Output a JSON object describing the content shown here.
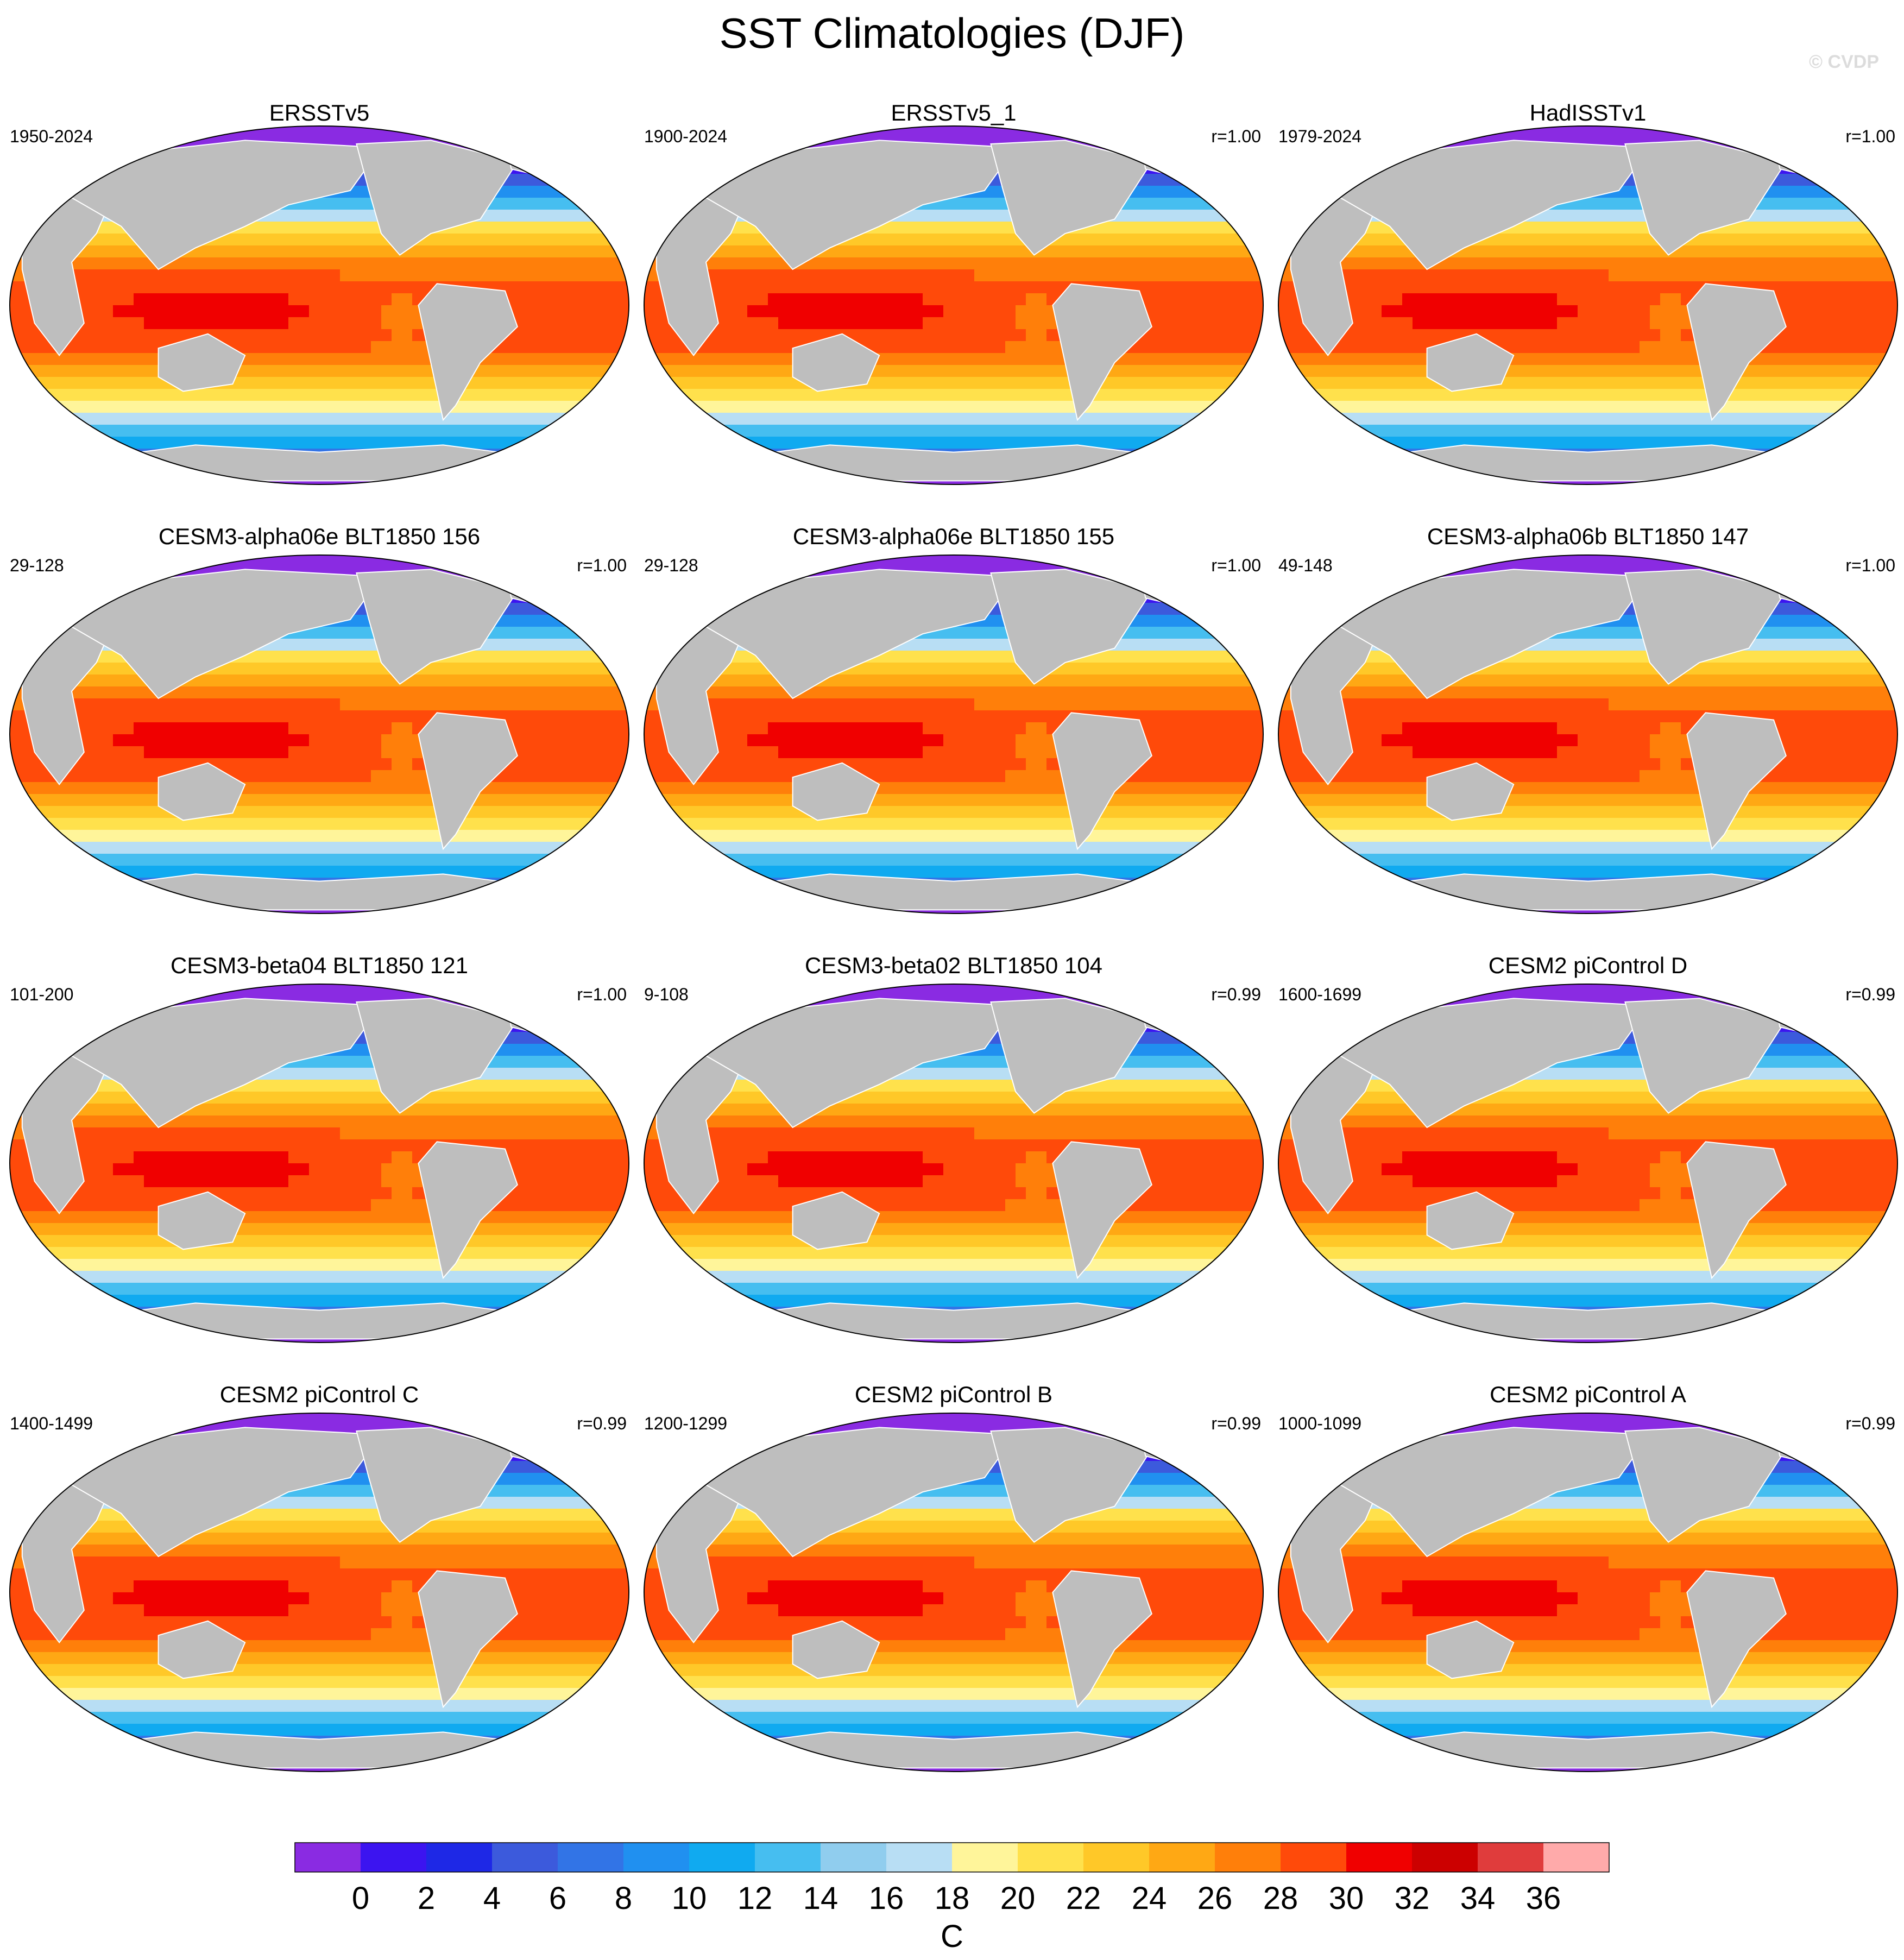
{
  "title": "SST Climatologies (DJF)",
  "watermark": "© CVDP",
  "chart_data": {
    "type": "heatmap",
    "projection": "robinson",
    "land_color": "#BEBEBE",
    "panels": [
      {
        "name": "ERSSTv5",
        "period": "1950-2024",
        "r": ""
      },
      {
        "name": "ERSSTv5_1",
        "period": "1900-2024",
        "r": "r=1.00"
      },
      {
        "name": "HadISSTv1",
        "period": "1979-2024",
        "r": "r=1.00"
      },
      {
        "name": "CESM3-alpha06e BLT1850 156",
        "period": "29-128",
        "r": "r=1.00"
      },
      {
        "name": "CESM3-alpha06e BLT1850 155",
        "period": "29-128",
        "r": "r=1.00"
      },
      {
        "name": "CESM3-alpha06b BLT1850 147",
        "period": "49-148",
        "r": "r=1.00"
      },
      {
        "name": "CESM3-beta04 BLT1850 121",
        "period": "101-200",
        "r": "r=1.00"
      },
      {
        "name": "CESM3-beta02 BLT1850 104",
        "period": "9-108",
        "r": "r=0.99"
      },
      {
        "name": "CESM2 piControl D",
        "period": "1600-1699",
        "r": "r=0.99"
      },
      {
        "name": "CESM2 piControl C",
        "period": "1400-1499",
        "r": "r=0.99"
      },
      {
        "name": "CESM2 piControl B",
        "period": "1200-1299",
        "r": "r=0.99"
      },
      {
        "name": "CESM2 piControl A",
        "period": "1000-1099",
        "r": "r=0.99"
      }
    ],
    "colorbar": {
      "label": "C",
      "ticks": [
        "0",
        "2",
        "4",
        "6",
        "8",
        "10",
        "12",
        "14",
        "16",
        "18",
        "20",
        "22",
        "24",
        "26",
        "28",
        "30",
        "32",
        "34",
        "36"
      ],
      "colors": [
        "#8A2BE2",
        "#3C14F0",
        "#1E28E6",
        "#3C5ADC",
        "#3274E6",
        "#2090F0",
        "#10AAF0",
        "#46BEF0",
        "#90CDEE",
        "#B8DEF4",
        "#FFF59A",
        "#FFE14C",
        "#FFC828",
        "#FFA814",
        "#FF7F0A",
        "#FF4A0A",
        "#F00000",
        "#CC0000",
        "#E03C3C",
        "#FFAAAA"
      ]
    }
  }
}
